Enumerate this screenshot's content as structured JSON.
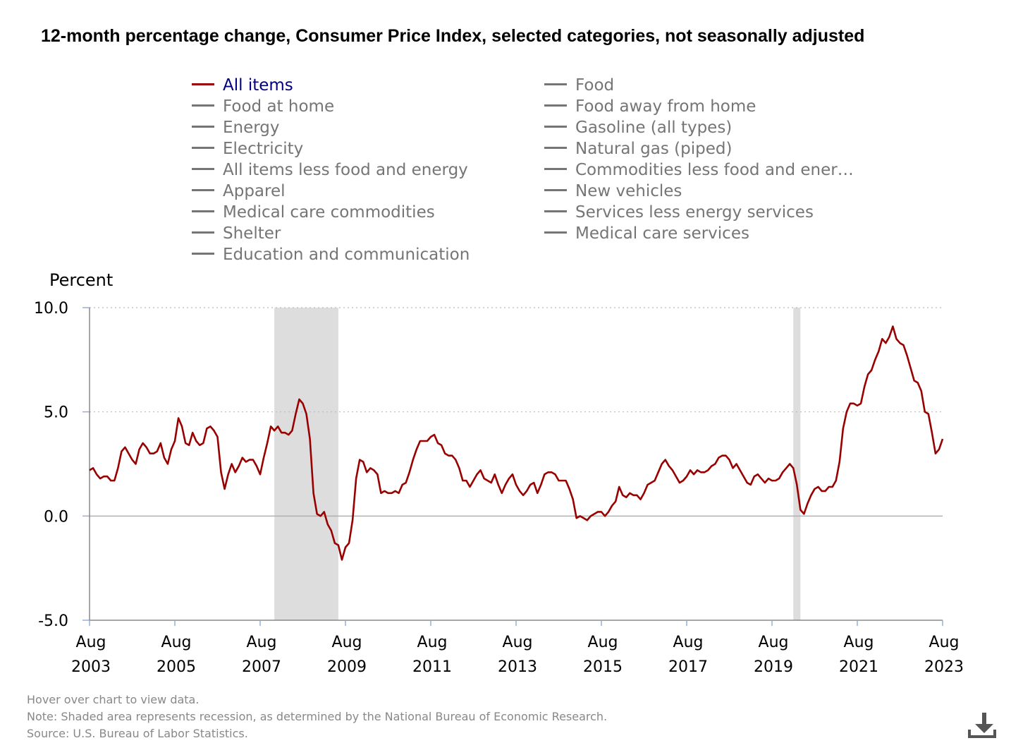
{
  "title": "12-month percentage change, Consumer Price Index, selected categories, not seasonally adjusted",
  "legend": [
    {
      "label": "All items",
      "active": true
    },
    {
      "label": "Food",
      "active": false
    },
    {
      "label": "Food at home",
      "active": false
    },
    {
      "label": "Food away from home",
      "active": false
    },
    {
      "label": "Energy",
      "active": false
    },
    {
      "label": "Gasoline (all types)",
      "active": false
    },
    {
      "label": "Electricity",
      "active": false
    },
    {
      "label": "Natural gas (piped)",
      "active": false
    },
    {
      "label": "All items less food and energy",
      "active": false
    },
    {
      "label": "Commodities less food and ener…",
      "active": false
    },
    {
      "label": "Apparel",
      "active": false
    },
    {
      "label": "New vehicles",
      "active": false
    },
    {
      "label": "Medical care commodities",
      "active": false
    },
    {
      "label": "Services less energy services",
      "active": false
    },
    {
      "label": "Shelter",
      "active": false
    },
    {
      "label": "Medical care services",
      "active": false
    },
    {
      "label": "Education and communication",
      "active": false
    }
  ],
  "footer": {
    "hover": "Hover over chart to view data.",
    "note": "Note: Shaded area represents recession, as determined by the National Bureau of Economic Research.",
    "source": "Source: U.S. Bureau of Labor Statistics."
  },
  "icons": {
    "download": "download-icon"
  },
  "chart_data": {
    "type": "line",
    "ylabel": "Percent",
    "ylim": [
      -5.0,
      10.0
    ],
    "yticks": [
      "10.0",
      "5.0",
      "0.0",
      "-5.0"
    ],
    "xlim": [
      "2003-08",
      "2023-08"
    ],
    "xticks": [
      {
        "label": "Aug",
        "year": "2003"
      },
      {
        "label": "Aug",
        "year": "2005"
      },
      {
        "label": "Aug",
        "year": "2007"
      },
      {
        "label": "Aug",
        "year": "2009"
      },
      {
        "label": "Aug",
        "year": "2011"
      },
      {
        "label": "Aug",
        "year": "2013"
      },
      {
        "label": "Aug",
        "year": "2015"
      },
      {
        "label": "Aug",
        "year": "2017"
      },
      {
        "label": "Aug",
        "year": "2019"
      },
      {
        "label": "Aug",
        "year": "2021"
      },
      {
        "label": "Aug",
        "year": "2023"
      }
    ],
    "recessions": [
      {
        "start": "2007-12",
        "end": "2009-06"
      },
      {
        "start": "2020-02",
        "end": "2020-04"
      }
    ],
    "colors": {
      "series": "#990000",
      "recession": "#dddddd",
      "grid": "#bbbbbb",
      "axis": "#888888"
    },
    "series": [
      {
        "name": "All items",
        "start": "2003-08",
        "frequency": "monthly",
        "values": [
          2.2,
          2.3,
          2.0,
          1.8,
          1.9,
          1.9,
          1.7,
          1.7,
          2.3,
          3.1,
          3.3,
          3.0,
          2.7,
          2.5,
          3.2,
          3.5,
          3.3,
          3.0,
          3.0,
          3.1,
          3.5,
          2.8,
          2.5,
          3.2,
          3.6,
          4.7,
          4.3,
          3.5,
          3.4,
          4.0,
          3.6,
          3.4,
          3.5,
          4.2,
          4.3,
          4.1,
          3.8,
          2.1,
          1.3,
          2.0,
          2.5,
          2.1,
          2.4,
          2.8,
          2.6,
          2.7,
          2.7,
          2.4,
          2.0,
          2.8,
          3.5,
          4.3,
          4.1,
          4.3,
          4.0,
          4.0,
          3.9,
          4.1,
          4.9,
          5.6,
          5.4,
          4.9,
          3.7,
          1.1,
          0.1,
          0.0,
          0.2,
          -0.4,
          -0.7,
          -1.3,
          -1.4,
          -2.1,
          -1.5,
          -1.3,
          -0.2,
          1.8,
          2.7,
          2.6,
          2.1,
          2.3,
          2.2,
          2.0,
          1.1,
          1.2,
          1.1,
          1.1,
          1.2,
          1.1,
          1.5,
          1.6,
          2.1,
          2.7,
          3.2,
          3.6,
          3.6,
          3.6,
          3.8,
          3.9,
          3.5,
          3.4,
          3.0,
          2.9,
          2.9,
          2.7,
          2.3,
          1.7,
          1.7,
          1.4,
          1.7,
          2.0,
          2.2,
          1.8,
          1.7,
          1.6,
          2.0,
          1.5,
          1.1,
          1.5,
          1.8,
          2.0,
          1.5,
          1.2,
          1.0,
          1.2,
          1.5,
          1.6,
          1.1,
          1.5,
          2.0,
          2.1,
          2.1,
          2.0,
          1.7,
          1.7,
          1.7,
          1.3,
          0.8,
          -0.1,
          0.0,
          -0.1,
          -0.2,
          0.0,
          0.1,
          0.2,
          0.2,
          0.0,
          0.2,
          0.5,
          0.7,
          1.4,
          1.0,
          0.9,
          1.1,
          1.0,
          1.0,
          0.8,
          1.1,
          1.5,
          1.6,
          1.7,
          2.1,
          2.5,
          2.7,
          2.4,
          2.2,
          1.9,
          1.6,
          1.7,
          1.9,
          2.2,
          2.0,
          2.2,
          2.1,
          2.1,
          2.2,
          2.4,
          2.5,
          2.8,
          2.9,
          2.9,
          2.7,
          2.3,
          2.5,
          2.2,
          1.9,
          1.6,
          1.5,
          1.9,
          2.0,
          1.8,
          1.6,
          1.8,
          1.7,
          1.7,
          1.8,
          2.1,
          2.3,
          2.5,
          2.3,
          1.5,
          0.3,
          0.1,
          0.6,
          1.0,
          1.3,
          1.4,
          1.2,
          1.2,
          1.4,
          1.4,
          1.7,
          2.6,
          4.2,
          5.0,
          5.4,
          5.4,
          5.3,
          5.4,
          6.2,
          6.8,
          7.0,
          7.5,
          7.9,
          8.5,
          8.3,
          8.6,
          9.1,
          8.5,
          8.3,
          8.2,
          7.7,
          7.1,
          6.5,
          6.4,
          6.0,
          5.0,
          4.9,
          4.0,
          3.0,
          3.2,
          3.7
        ]
      }
    ]
  }
}
